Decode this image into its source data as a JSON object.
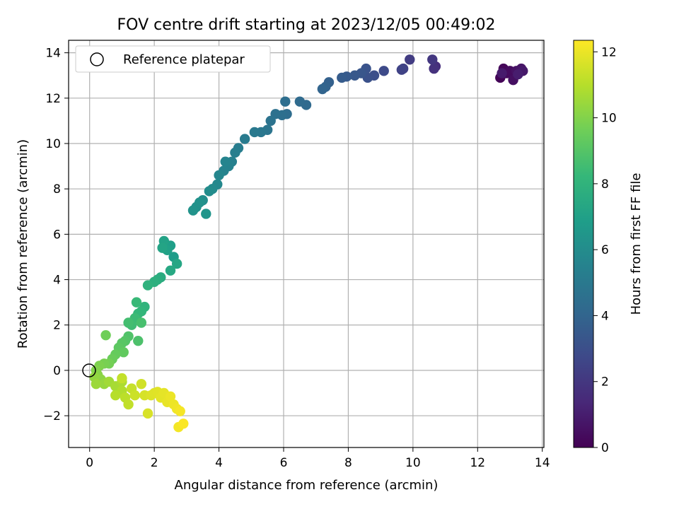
{
  "chart_data": {
    "type": "scatter",
    "title": "FOV centre drift starting at 2023/12/05 00:49:02",
    "xlabel": "Angular distance from reference (arcmin)",
    "ylabel": "Rotation from reference (arcmin)",
    "colorbar_label": "Hours from first FF file",
    "xlim": [
      -0.65,
      14.05
    ],
    "ylim": [
      -3.4,
      14.55
    ],
    "xticks": [
      "0",
      "2",
      "4",
      "6",
      "8",
      "10",
      "12",
      "14"
    ],
    "yticks": [
      "−2",
      "0",
      "2",
      "4",
      "6",
      "8",
      "10",
      "12",
      "14"
    ],
    "colorbar_ticks": [
      "0",
      "2",
      "4",
      "6",
      "8",
      "10",
      "12"
    ],
    "colorbar_range": [
      0,
      12.35
    ],
    "grid": true,
    "legend": {
      "placement": "top-left",
      "label": "Reference platepar"
    },
    "reference_point": {
      "x": 0,
      "y": 0
    },
    "colormap": "viridis",
    "colormap_stops": [
      "#440154",
      "#482878",
      "#3e4989",
      "#31688e",
      "#26828e",
      "#1f9e89",
      "#35b779",
      "#6ece58",
      "#b5de2b",
      "#fde725"
    ],
    "points": [
      [
        12.7,
        12.9,
        0.1
      ],
      [
        12.8,
        13.3,
        0.2
      ],
      [
        12.9,
        13.1,
        0.3
      ],
      [
        13.0,
        13.2,
        0.4
      ],
      [
        13.1,
        12.8,
        0.5
      ],
      [
        13.2,
        13.2,
        0.6
      ],
      [
        13.35,
        13.3,
        0.7
      ],
      [
        13.4,
        13.2,
        0.8
      ],
      [
        12.75,
        13.1,
        0.9
      ],
      [
        13.25,
        13.05,
        1.0
      ],
      [
        10.7,
        13.4,
        1.6
      ],
      [
        10.65,
        13.3,
        1.8
      ],
      [
        10.6,
        13.7,
        2.0
      ],
      [
        9.9,
        13.7,
        2.2
      ],
      [
        9.7,
        13.3,
        2.4
      ],
      [
        9.65,
        13.25,
        2.5
      ],
      [
        9.1,
        13.2,
        2.8
      ],
      [
        8.8,
        13.0,
        3.0
      ],
      [
        8.6,
        12.9,
        3.1
      ],
      [
        8.55,
        13.3,
        3.2
      ],
      [
        8.4,
        13.1,
        3.3
      ],
      [
        8.2,
        13.0,
        3.4
      ],
      [
        7.95,
        12.95,
        3.5
      ],
      [
        7.8,
        12.9,
        3.6
      ],
      [
        7.4,
        12.7,
        3.8
      ],
      [
        7.3,
        12.5,
        3.9
      ],
      [
        7.2,
        12.4,
        4.0
      ],
      [
        6.7,
        11.7,
        4.2
      ],
      [
        6.5,
        11.85,
        4.3
      ],
      [
        6.1,
        11.3,
        4.4
      ],
      [
        6.05,
        11.85,
        4.45
      ],
      [
        5.95,
        11.25,
        4.5
      ],
      [
        5.75,
        11.3,
        4.6
      ],
      [
        5.6,
        11.0,
        4.7
      ],
      [
        5.5,
        10.6,
        4.8
      ],
      [
        5.3,
        10.5,
        4.9
      ],
      [
        5.1,
        10.5,
        5.0
      ],
      [
        4.8,
        10.2,
        5.1
      ],
      [
        4.6,
        9.8,
        5.2
      ],
      [
        4.5,
        9.6,
        5.3
      ],
      [
        4.4,
        9.2,
        5.4
      ],
      [
        4.3,
        9.0,
        5.5
      ],
      [
        4.15,
        8.8,
        5.55
      ],
      [
        4.2,
        9.2,
        5.6
      ],
      [
        4.0,
        8.6,
        5.7
      ],
      [
        3.95,
        8.2,
        5.8
      ],
      [
        3.8,
        8.0,
        5.9
      ],
      [
        3.7,
        7.9,
        6.0
      ],
      [
        3.5,
        7.5,
        6.1
      ],
      [
        3.3,
        7.2,
        6.2
      ],
      [
        3.4,
        7.4,
        6.25
      ],
      [
        3.2,
        7.05,
        6.3
      ],
      [
        3.6,
        6.9,
        6.4
      ],
      [
        2.6,
        5.0,
        6.8
      ],
      [
        2.5,
        5.5,
        6.9
      ],
      [
        2.4,
        5.3,
        7.0
      ],
      [
        2.3,
        5.7,
        7.1
      ],
      [
        2.25,
        5.4,
        7.2
      ],
      [
        2.7,
        4.7,
        7.3
      ],
      [
        2.5,
        4.4,
        7.4
      ],
      [
        2.2,
        4.1,
        7.6
      ],
      [
        2.1,
        4.0,
        7.7
      ],
      [
        2.0,
        3.9,
        7.8
      ],
      [
        1.8,
        3.75,
        7.9
      ],
      [
        1.7,
        2.8,
        8.0
      ],
      [
        1.6,
        2.6,
        8.1
      ],
      [
        1.5,
        2.5,
        8.2
      ],
      [
        1.45,
        3.0,
        8.3
      ],
      [
        1.4,
        2.3,
        8.4
      ],
      [
        1.3,
        2.0,
        8.5
      ],
      [
        1.2,
        2.1,
        8.6
      ],
      [
        1.6,
        2.1,
        8.7
      ],
      [
        1.5,
        1.3,
        8.8
      ],
      [
        1.2,
        1.5,
        8.9
      ],
      [
        1.1,
        1.3,
        9.0
      ],
      [
        1.0,
        1.2,
        9.1
      ],
      [
        0.9,
        1.0,
        9.2
      ],
      [
        1.05,
        0.8,
        9.3
      ],
      [
        0.8,
        0.7,
        9.4
      ],
      [
        0.7,
        0.5,
        9.5
      ],
      [
        0.5,
        1.55,
        9.6
      ],
      [
        0.6,
        0.3,
        9.7
      ],
      [
        0.45,
        0.3,
        9.8
      ],
      [
        0.3,
        0.2,
        9.9
      ],
      [
        0.2,
        0.0,
        10.0
      ],
      [
        0.25,
        -0.2,
        10.1
      ],
      [
        0.35,
        -0.4,
        10.2
      ],
      [
        0.15,
        -0.3,
        10.3
      ],
      [
        0.45,
        -0.6,
        10.4
      ],
      [
        0.2,
        -0.6,
        10.5
      ],
      [
        0.6,
        -0.5,
        10.6
      ],
      [
        0.8,
        -0.7,
        10.7
      ],
      [
        1.0,
        -0.5,
        10.8
      ],
      [
        1.0,
        -0.9,
        10.9
      ],
      [
        0.8,
        -1.1,
        11.0
      ],
      [
        1.1,
        -1.2,
        11.1
      ],
      [
        1.2,
        -1.5,
        11.2
      ],
      [
        1.0,
        -0.35,
        11.25
      ],
      [
        1.3,
        -0.8,
        11.3
      ],
      [
        1.4,
        -1.1,
        11.4
      ],
      [
        1.6,
        -0.6,
        11.5
      ],
      [
        1.7,
        -1.1,
        11.6
      ],
      [
        1.8,
        -1.9,
        11.65
      ],
      [
        1.9,
        -1.1,
        11.7
      ],
      [
        2.0,
        -1.0,
        11.75
      ],
      [
        2.1,
        -0.95,
        11.8
      ],
      [
        2.2,
        -1.2,
        11.85
      ],
      [
        2.3,
        -1.0,
        11.9
      ],
      [
        2.4,
        -1.4,
        11.95
      ],
      [
        2.5,
        -1.15,
        12.0
      ],
      [
        2.6,
        -1.5,
        12.05
      ],
      [
        2.7,
        -1.7,
        12.1
      ],
      [
        2.75,
        -2.5,
        12.15
      ],
      [
        2.8,
        -1.8,
        12.2
      ],
      [
        2.9,
        -2.35,
        12.3
      ]
    ]
  }
}
